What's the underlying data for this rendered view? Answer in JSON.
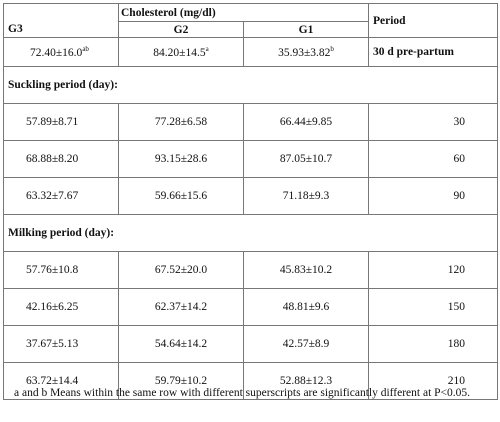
{
  "headers": {
    "cholesterol": "Cholesterol (mg/dl)",
    "period": "Period",
    "g3": "G3",
    "g2": "G2",
    "g1": "G1"
  },
  "pre_partum": {
    "g3": "72.40±16.0",
    "g3_sup": "ab",
    "g2": "84.20±14.5",
    "g2_sup": "a",
    "g1": "35.93±3.82",
    "g1_sup": "b",
    "period": "30 d pre-partum"
  },
  "suckling": {
    "label": "Suckling period (day):",
    "rows": [
      {
        "g3": "57.89±8.71",
        "g2": "77.28±6.58",
        "g1": "66.44±9.85",
        "period": "30"
      },
      {
        "g3": "68.88±8.20",
        "g2": "93.15±28.6",
        "g1": "87.05±10.7",
        "period": "60"
      },
      {
        "g3": "63.32±7.67",
        "g2": "59.66±15.6",
        "g1": "71.18±9.3",
        "period": "90"
      }
    ]
  },
  "milking": {
    "label": "Milking period (day):",
    "rows": [
      {
        "g3": "57.76±10.8",
        "g2": "67.52±20.0",
        "g1": "45.83±10.2",
        "period": "120"
      },
      {
        "g3": "42.16±6.25",
        "g2": "62.37±14.2",
        "g1": "48.81±9.6",
        "period": "150"
      },
      {
        "g3": "37.67±5.13",
        "g2": "54.64±14.2",
        "g1": "42.57±8.9",
        "period": "180"
      },
      {
        "g3": "63.72±14.4",
        "g2": "59.79±10.2",
        "g1": "52.88±12.3",
        "period": "210"
      }
    ]
  },
  "footnote": "a and b Means within the same row with different superscripts are significantly different at P<0.05."
}
